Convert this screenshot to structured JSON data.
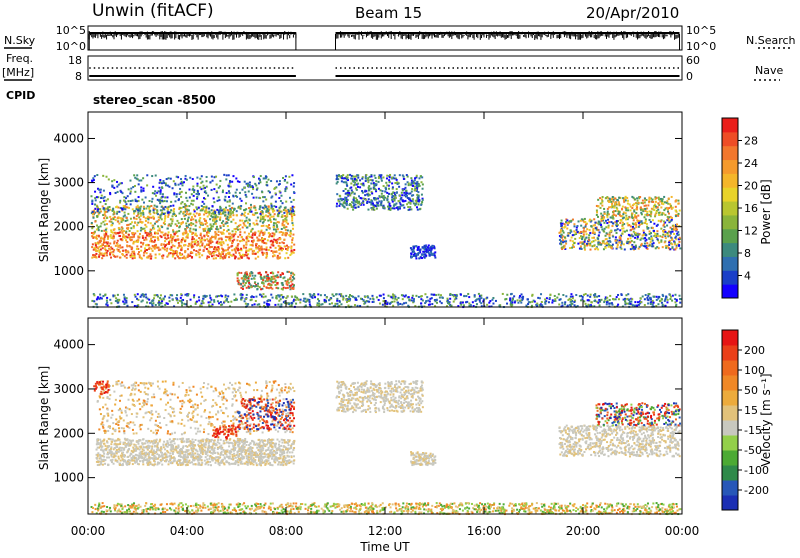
{
  "header": {
    "station": "Unwin (fitACF)",
    "beam": "Beam 15",
    "date": "20/Apr/2010"
  },
  "side_labels": {
    "nsky": "N.Sky",
    "freq_line1": "Freq.",
    "freq_line2": "[MHz]",
    "cpid": "CPID",
    "nsearch": "N.Search",
    "nave": "Nave",
    "cpid_value": "stereo_scan -8500"
  },
  "noise_panel": {
    "left_ticks": [
      "10^5",
      "10^0"
    ],
    "right_ticks": [
      "10^5",
      "10^0"
    ]
  },
  "freq_panel": {
    "left_ticks": [
      "18",
      "8"
    ],
    "right_ticks": [
      "60",
      "0"
    ]
  },
  "chart_data": [
    {
      "type": "heatmap",
      "name": "power",
      "ylabel": "Slant Range [km]",
      "ylim": [
        180,
        4600
      ],
      "yticks": [
        "1000",
        "2000",
        "3000",
        "4000"
      ],
      "xlim": [
        "00:00",
        "24:00"
      ],
      "xticks": [
        "00:00",
        "04:00",
        "08:00",
        "12:00",
        "16:00",
        "20:00",
        "00:00"
      ],
      "colorbar": {
        "label": "Power [dB]",
        "ticks": [
          "4",
          "8",
          "12",
          "16",
          "20",
          "24",
          "28"
        ],
        "colors": [
          "#1400ff",
          "#1a3fc8",
          "#2f6fb0",
          "#3c8a7e",
          "#5aa14d",
          "#8ab43a",
          "#b9c630",
          "#e8d329",
          "#f4b62a",
          "#f59a2c",
          "#f2772d",
          "#ee4d26",
          "#ea1f1b"
        ]
      }
    },
    {
      "type": "heatmap",
      "name": "velocity",
      "ylabel": "Slant Range [km]",
      "ylim": [
        180,
        4600
      ],
      "yticks": [
        "1000",
        "2000",
        "3000",
        "4000"
      ],
      "xlim": [
        "00:00",
        "24:00"
      ],
      "xticks": [
        "00:00",
        "04:00",
        "08:00",
        "12:00",
        "16:00",
        "20:00",
        "00:00"
      ],
      "xlabel": "Time UT",
      "colorbar": {
        "label": "Velocity [m s⁻¹]",
        "ticks": [
          "200",
          "100",
          "50",
          "15",
          "-15",
          "-50",
          "-100",
          "-200"
        ],
        "colors": [
          "#1b2fb4",
          "#2757b8",
          "#2f8a4a",
          "#4caa34",
          "#93cf4a",
          "#c8c8bf",
          "#e2c27a",
          "#ecab3c",
          "#f08826",
          "#ef6a1d",
          "#ea3f19",
          "#e61414"
        ]
      }
    }
  ]
}
